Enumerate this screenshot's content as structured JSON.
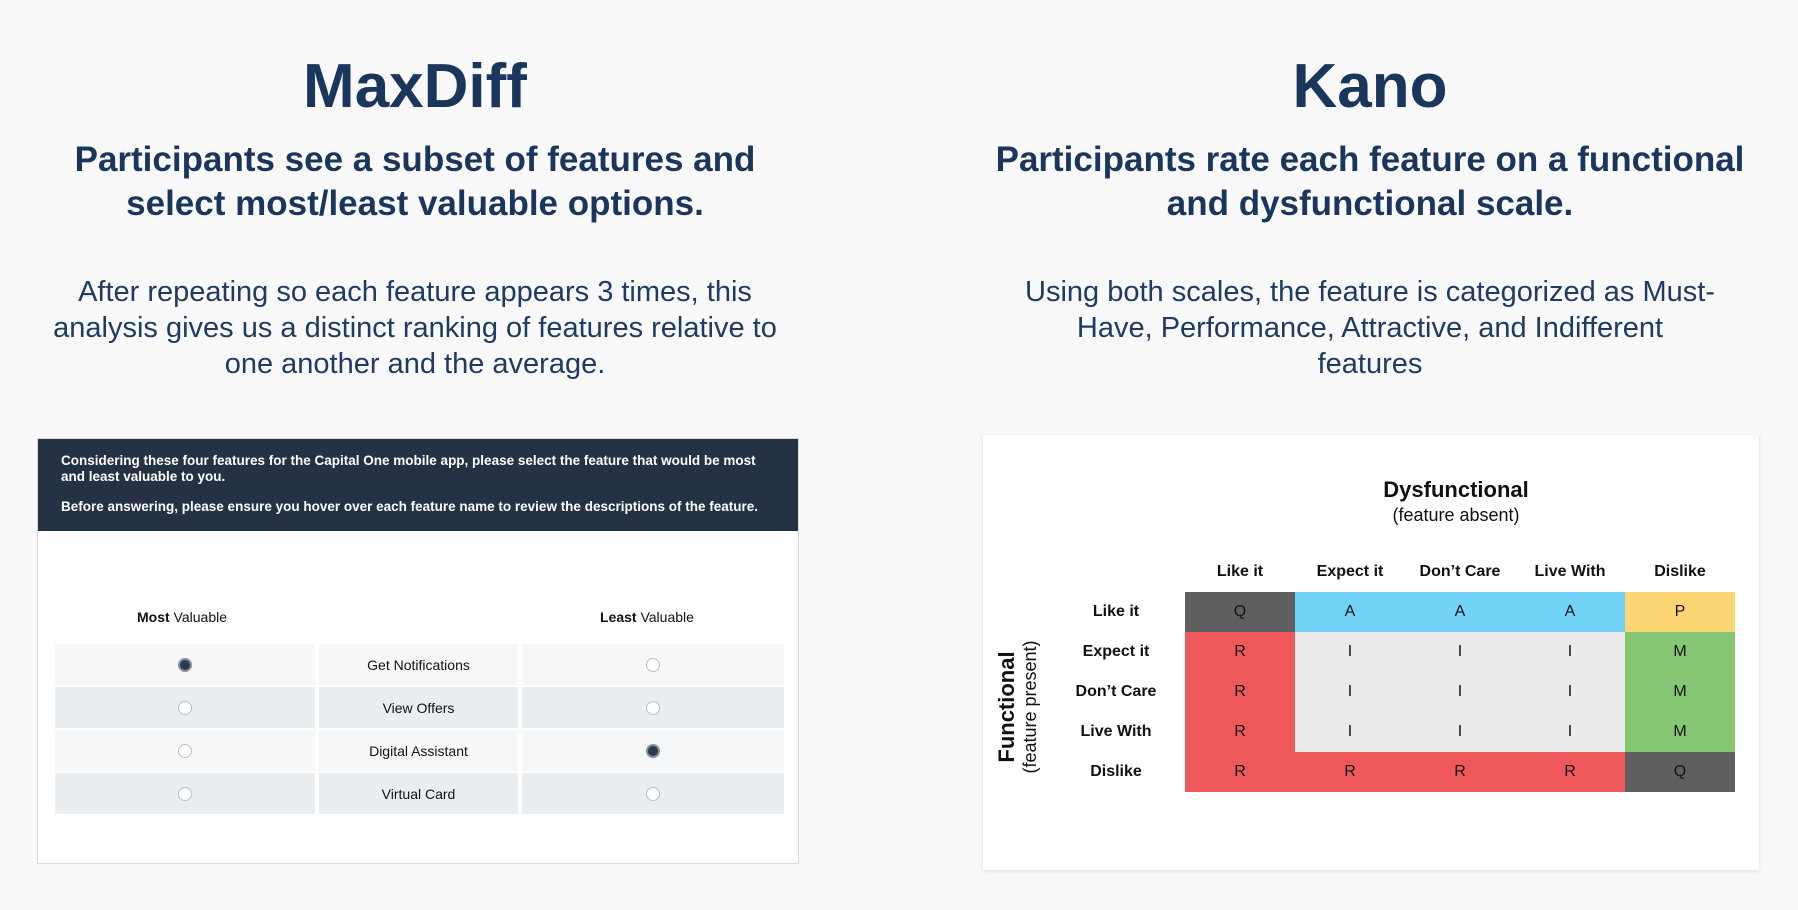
{
  "maxdiff": {
    "title": "MaxDiff",
    "subtitle": "Participants see a subset of features and select most/least valuable options.",
    "description": "After repeating so each feature appears 3 times, this analysis gives us a distinct ranking of features relative to one another and the average.",
    "survey": {
      "instruction": "Considering these four features for the Capital One mobile app, please select the feature that would be most and least valuable to you.",
      "hover_note": "Before answering, please ensure you hover over each feature name to review the descriptions of the feature.",
      "most_bold": "Most",
      "most_rest": " Valuable",
      "least_bold": "Least",
      "least_rest": " Valuable",
      "rows": [
        {
          "feature": "Get Notifications",
          "most_selected": true,
          "least_selected": false
        },
        {
          "feature": "View Offers",
          "most_selected": false,
          "least_selected": false
        },
        {
          "feature": "Digital Assistant",
          "most_selected": false,
          "least_selected": true
        },
        {
          "feature": "Virtual Card",
          "most_selected": false,
          "least_selected": false
        }
      ]
    }
  },
  "kano": {
    "title": "Kano",
    "subtitle": "Participants rate each feature on a functional and dysfunctional scale.",
    "description": "Using both scales, the feature is categorized as Must-Have, Performance, Attractive, and Indifferent features",
    "matrix": {
      "dysfunctional_title": "Dysfunctional",
      "dysfunctional_sub": "(feature absent)",
      "functional_title": "Functional",
      "functional_sub": "(feature present)",
      "columns": [
        "Like it",
        "Expect it",
        "Don’t Care",
        "Live With",
        "Dislike"
      ],
      "rows": [
        "Like it",
        "Expect it",
        "Don’t Care",
        "Live With",
        "Dislike"
      ],
      "cells": [
        [
          "Q",
          "A",
          "A",
          "A",
          "P"
        ],
        [
          "R",
          "I",
          "I",
          "I",
          "M"
        ],
        [
          "R",
          "I",
          "I",
          "I",
          "M"
        ],
        [
          "R",
          "I",
          "I",
          "I",
          "M"
        ],
        [
          "R",
          "R",
          "R",
          "R",
          "Q"
        ]
      ],
      "colors": {
        "Q": "#5f5f5f",
        "A": "#72d3f7",
        "P": "#fdd474",
        "R": "#ef595c",
        "I": "#ebebeb",
        "M": "#86c774"
      }
    }
  }
}
